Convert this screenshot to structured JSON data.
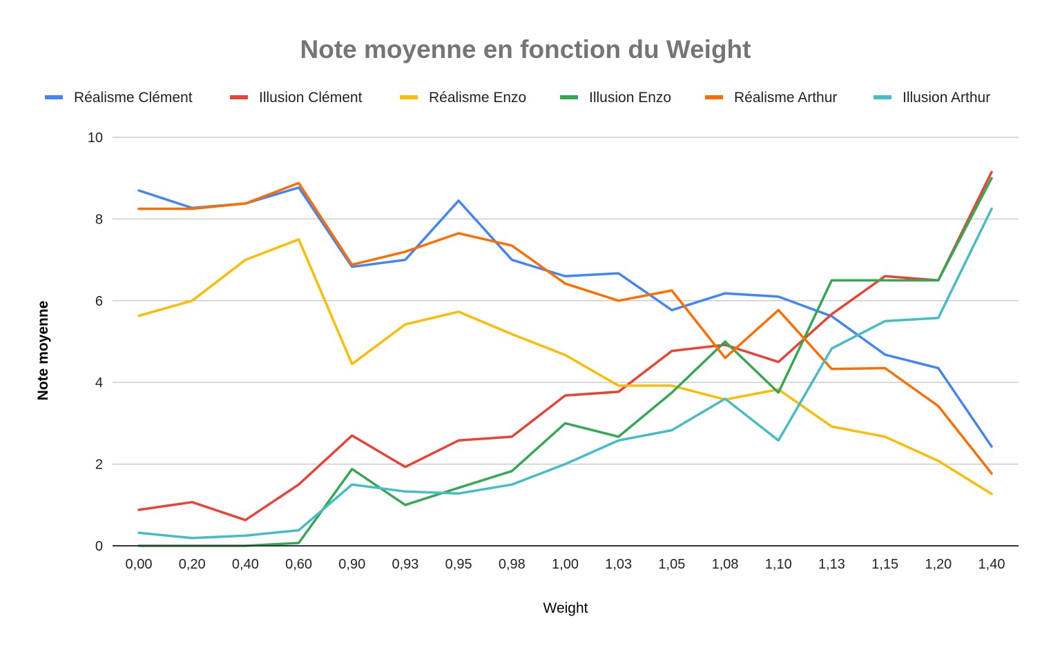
{
  "chart_data": {
    "type": "line",
    "title": "Note moyenne en fonction du Weight",
    "xlabel": "Weight",
    "ylabel": "Note moyenne",
    "ylim": [
      0,
      10
    ],
    "yticks": [
      "0",
      "2",
      "4",
      "6",
      "8",
      "10"
    ],
    "grid": true,
    "legend_position": "top",
    "categories": [
      "0,00",
      "0,20",
      "0,40",
      "0,60",
      "0,90",
      "0,93",
      "0,95",
      "0,98",
      "1,00",
      "1,03",
      "1,05",
      "1,08",
      "1,10",
      "1,13",
      "1,15",
      "1,20",
      "1,40"
    ],
    "series": [
      {
        "name": "Réalisme Clément",
        "color": "#4285f4",
        "values": [
          8.7,
          8.27,
          8.38,
          8.77,
          6.83,
          7.0,
          8.45,
          7.0,
          6.6,
          6.67,
          5.77,
          6.18,
          6.1,
          5.62,
          4.68,
          4.35,
          2.43
        ]
      },
      {
        "name": "Illusion Clément",
        "color": "#ea4335",
        "values": [
          0.88,
          1.07,
          0.63,
          1.5,
          2.7,
          1.93,
          2.58,
          2.67,
          3.68,
          3.77,
          4.77,
          4.92,
          4.5,
          5.67,
          6.6,
          6.5,
          9.15
        ]
      },
      {
        "name": "Réalisme Enzo",
        "color": "#fbbc04",
        "values": [
          5.63,
          6.0,
          7.0,
          7.5,
          4.45,
          5.42,
          5.73,
          5.18,
          4.67,
          3.92,
          3.92,
          3.58,
          3.83,
          2.92,
          2.67,
          2.08,
          1.27
        ]
      },
      {
        "name": "Illusion Enzo",
        "color": "#34a853",
        "values": [
          0.0,
          0.0,
          0.0,
          0.07,
          1.88,
          1.0,
          1.42,
          1.83,
          3.0,
          2.67,
          3.75,
          5.0,
          3.75,
          6.5,
          6.5,
          6.5,
          9.0
        ]
      },
      {
        "name": "Réalisme Arthur",
        "color": "#ff6d01",
        "values": [
          8.25,
          8.25,
          8.38,
          8.88,
          6.88,
          7.2,
          7.65,
          7.35,
          6.42,
          6.0,
          6.25,
          4.6,
          5.77,
          4.33,
          4.35,
          3.42,
          1.77
        ]
      },
      {
        "name": "Illusion Arthur",
        "color": "#46bdc6",
        "values": [
          0.32,
          0.19,
          0.25,
          0.38,
          1.5,
          1.33,
          1.28,
          1.5,
          2.0,
          2.58,
          2.83,
          3.6,
          2.58,
          4.83,
          5.5,
          5.58,
          8.25
        ]
      }
    ]
  }
}
